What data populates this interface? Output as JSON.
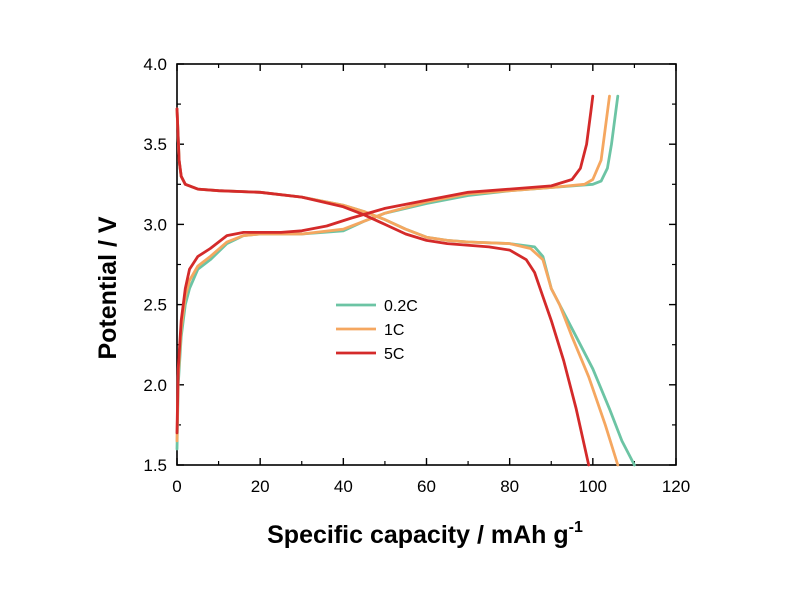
{
  "chart_data": {
    "type": "line",
    "title": "",
    "xlabel": "Specific capacity / mAh g",
    "xlabel_sup": "-1",
    "ylabel": "Potential / V",
    "xlim": [
      0,
      120
    ],
    "ylim": [
      1.5,
      4.0
    ],
    "xticks": [
      "0",
      "20",
      "40",
      "60",
      "80",
      "100",
      "120"
    ],
    "yticks": [
      "1.5",
      "2.0",
      "2.5",
      "3.0",
      "3.5",
      "4.0"
    ],
    "grid": false,
    "legend_position": "center-left",
    "series": [
      {
        "name": "0.2C",
        "color": "#6cc4a4",
        "charge": [
          [
            0,
            1.6
          ],
          [
            0.3,
            2.0
          ],
          [
            1,
            2.3
          ],
          [
            2,
            2.5
          ],
          [
            3,
            2.6
          ],
          [
            5,
            2.72
          ],
          [
            8,
            2.78
          ],
          [
            12,
            2.88
          ],
          [
            16,
            2.93
          ],
          [
            20,
            2.94
          ],
          [
            30,
            2.94
          ],
          [
            40,
            2.96
          ],
          [
            45,
            3.02
          ],
          [
            50,
            3.07
          ],
          [
            60,
            3.13
          ],
          [
            70,
            3.18
          ],
          [
            80,
            3.21
          ],
          [
            90,
            3.23
          ],
          [
            100,
            3.25
          ],
          [
            102,
            3.27
          ],
          [
            103.5,
            3.35
          ],
          [
            104.5,
            3.5
          ],
          [
            105.5,
            3.7
          ],
          [
            106,
            3.8
          ]
        ],
        "discharge": [
          [
            0,
            3.72
          ],
          [
            0.5,
            3.4
          ],
          [
            1,
            3.3
          ],
          [
            2,
            3.25
          ],
          [
            5,
            3.22
          ],
          [
            10,
            3.21
          ],
          [
            20,
            3.2
          ],
          [
            30,
            3.17
          ],
          [
            40,
            3.12
          ],
          [
            45,
            3.08
          ],
          [
            50,
            3.03
          ],
          [
            55,
            2.97
          ],
          [
            60,
            2.92
          ],
          [
            65,
            2.9
          ],
          [
            70,
            2.89
          ],
          [
            80,
            2.88
          ],
          [
            86,
            2.86
          ],
          [
            88,
            2.8
          ],
          [
            90,
            2.6
          ],
          [
            92,
            2.5
          ],
          [
            96,
            2.3
          ],
          [
            100,
            2.1
          ],
          [
            104,
            1.85
          ],
          [
            107,
            1.65
          ],
          [
            110,
            1.5
          ]
        ]
      },
      {
        "name": "1C",
        "color": "#f5a760",
        "charge": [
          [
            0,
            1.65
          ],
          [
            0.3,
            2.05
          ],
          [
            1,
            2.35
          ],
          [
            2,
            2.55
          ],
          [
            3,
            2.65
          ],
          [
            5,
            2.74
          ],
          [
            8,
            2.8
          ],
          [
            12,
            2.89
          ],
          [
            16,
            2.93
          ],
          [
            20,
            2.94
          ],
          [
            30,
            2.94
          ],
          [
            40,
            2.97
          ],
          [
            45,
            3.02
          ],
          [
            50,
            3.07
          ],
          [
            60,
            3.14
          ],
          [
            70,
            3.19
          ],
          [
            80,
            3.21
          ],
          [
            90,
            3.23
          ],
          [
            98,
            3.25
          ],
          [
            100,
            3.28
          ],
          [
            102,
            3.4
          ],
          [
            103,
            3.6
          ],
          [
            104,
            3.8
          ]
        ],
        "discharge": [
          [
            0,
            3.72
          ],
          [
            0.5,
            3.4
          ],
          [
            1,
            3.3
          ],
          [
            2,
            3.25
          ],
          [
            5,
            3.22
          ],
          [
            10,
            3.21
          ],
          [
            20,
            3.2
          ],
          [
            30,
            3.17
          ],
          [
            40,
            3.12
          ],
          [
            45,
            3.08
          ],
          [
            50,
            3.03
          ],
          [
            55,
            2.97
          ],
          [
            60,
            2.92
          ],
          [
            65,
            2.9
          ],
          [
            70,
            2.89
          ],
          [
            80,
            2.88
          ],
          [
            85,
            2.85
          ],
          [
            88,
            2.78
          ],
          [
            90,
            2.6
          ],
          [
            92,
            2.5
          ],
          [
            95,
            2.3
          ],
          [
            99,
            2.05
          ],
          [
            103,
            1.75
          ],
          [
            106,
            1.5
          ]
        ]
      },
      {
        "name": "5C",
        "color": "#d42a2a",
        "charge": [
          [
            0,
            1.7
          ],
          [
            0.3,
            2.1
          ],
          [
            1,
            2.4
          ],
          [
            2,
            2.6
          ],
          [
            3,
            2.72
          ],
          [
            5,
            2.8
          ],
          [
            8,
            2.85
          ],
          [
            12,
            2.93
          ],
          [
            16,
            2.95
          ],
          [
            25,
            2.95
          ],
          [
            30,
            2.96
          ],
          [
            36,
            2.99
          ],
          [
            42,
            3.04
          ],
          [
            50,
            3.1
          ],
          [
            60,
            3.15
          ],
          [
            70,
            3.2
          ],
          [
            80,
            3.22
          ],
          [
            90,
            3.24
          ],
          [
            95,
            3.28
          ],
          [
            97,
            3.35
          ],
          [
            98.5,
            3.5
          ],
          [
            99.5,
            3.7
          ],
          [
            100,
            3.8
          ]
        ],
        "discharge": [
          [
            0,
            3.72
          ],
          [
            0.5,
            3.4
          ],
          [
            1,
            3.3
          ],
          [
            2,
            3.25
          ],
          [
            5,
            3.22
          ],
          [
            10,
            3.21
          ],
          [
            20,
            3.2
          ],
          [
            30,
            3.17
          ],
          [
            40,
            3.11
          ],
          [
            45,
            3.06
          ],
          [
            50,
            3.0
          ],
          [
            55,
            2.94
          ],
          [
            60,
            2.9
          ],
          [
            65,
            2.88
          ],
          [
            75,
            2.86
          ],
          [
            80,
            2.84
          ],
          [
            84,
            2.78
          ],
          [
            86,
            2.7
          ],
          [
            88,
            2.55
          ],
          [
            90,
            2.4
          ],
          [
            93,
            2.15
          ],
          [
            96,
            1.85
          ],
          [
            99,
            1.5
          ]
        ]
      }
    ]
  }
}
